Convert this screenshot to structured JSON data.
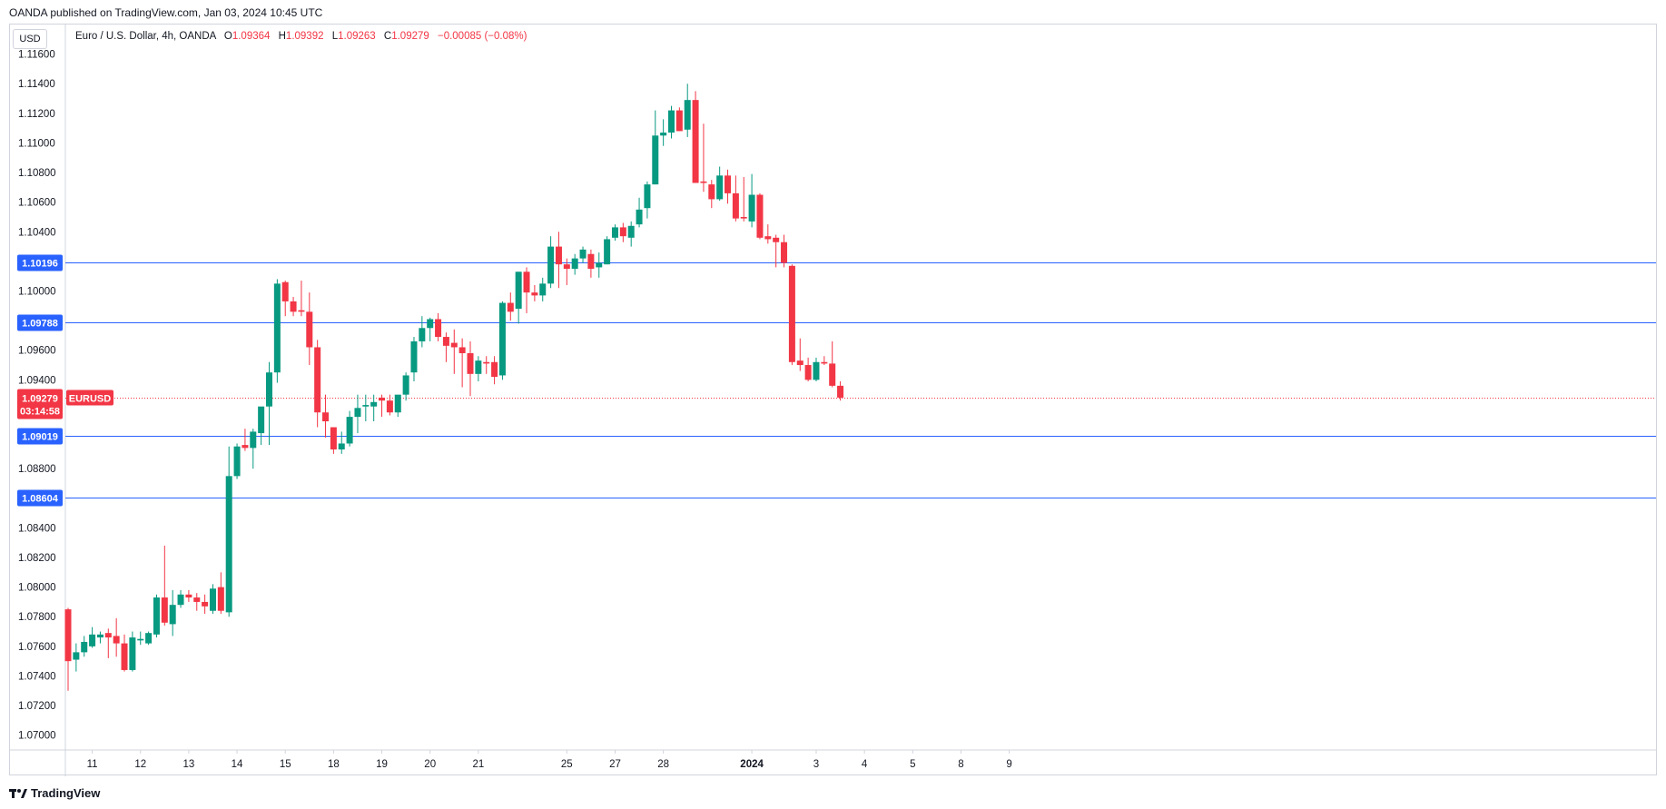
{
  "publisher_line": "OANDA published on TradingView.com, Jan 03, 2024 10:45 UTC",
  "currency_button": "USD",
  "legend": {
    "symbol": "Euro / U.S. Dollar, 4h, OANDA",
    "o_label": "O",
    "o_value": "1.09364",
    "h_label": "H",
    "h_value": "1.09392",
    "l_label": "L",
    "l_value": "1.09263",
    "c_label": "C",
    "c_value": "1.09279",
    "change": "−0.00085 (−0.08%)"
  },
  "footer_brand": "TradingView",
  "colors": {
    "up": "#089981",
    "down": "#f23645",
    "level": "#2962ff",
    "grid": "#d1d4dc"
  },
  "chart_data": {
    "type": "candlestick",
    "title": "Euro / U.S. Dollar, 4h, OANDA",
    "ylim": [
      1.069,
      1.118
    ],
    "y_ticks": [
      "1.11600",
      "1.11400",
      "1.11200",
      "1.11000",
      "1.10800",
      "1.10600",
      "1.10400",
      "1.10200",
      "1.10000",
      "1.09800",
      "1.09600",
      "1.09400",
      "1.09200",
      "1.09000",
      "1.08800",
      "1.08600",
      "1.08400",
      "1.08200",
      "1.08000",
      "1.07800",
      "1.07600",
      "1.07400",
      "1.07200",
      "1.07000"
    ],
    "x_ticks": [
      {
        "label": "11",
        "bar": 3
      },
      {
        "label": "12",
        "bar": 9
      },
      {
        "label": "13",
        "bar": 15
      },
      {
        "label": "14",
        "bar": 21
      },
      {
        "label": "15",
        "bar": 27
      },
      {
        "label": "18",
        "bar": 33
      },
      {
        "label": "19",
        "bar": 39
      },
      {
        "label": "20",
        "bar": 45
      },
      {
        "label": "21",
        "bar": 51
      },
      {
        "label": "25",
        "bar": 62
      },
      {
        "label": "27",
        "bar": 68
      },
      {
        "label": "28",
        "bar": 74
      },
      {
        "label": "2024",
        "bar": 85
      },
      {
        "label": "3",
        "bar": 93
      },
      {
        "label": "4",
        "bar": 99
      },
      {
        "label": "5",
        "bar": 105
      },
      {
        "label": "8",
        "bar": 111
      },
      {
        "label": "9",
        "bar": 117
      }
    ],
    "candles": [
      [
        1.0785,
        1.0786,
        1.073,
        1.075
      ],
      [
        1.0751,
        1.0762,
        1.0743,
        1.0756
      ],
      [
        1.0756,
        1.0767,
        1.0753,
        1.0763
      ],
      [
        1.076,
        1.0773,
        1.0759,
        1.0768
      ],
      [
        1.0766,
        1.077,
        1.0762,
        1.0768
      ],
      [
        1.0769,
        1.0772,
        1.0752,
        1.0766
      ],
      [
        1.0767,
        1.0779,
        1.0753,
        1.0762
      ],
      [
        1.0762,
        1.0768,
        1.0743,
        1.0744
      ],
      [
        1.0744,
        1.077,
        1.0743,
        1.0766
      ],
      [
        1.0764,
        1.077,
        1.0761,
        1.0765
      ],
      [
        1.0762,
        1.077,
        1.0761,
        1.0769
      ],
      [
        1.0768,
        1.0795,
        1.0766,
        1.0793
      ],
      [
        1.0793,
        1.0828,
        1.0774,
        1.0776
      ],
      [
        1.0775,
        1.0798,
        1.0767,
        1.0788
      ],
      [
        1.0788,
        1.0798,
        1.0786,
        1.0795
      ],
      [
        1.0795,
        1.0798,
        1.079,
        1.0793
      ],
      [
        1.0793,
        1.0796,
        1.0784,
        1.079
      ],
      [
        1.079,
        1.0795,
        1.0782,
        1.0787
      ],
      [
        1.0784,
        1.0802,
        1.0782,
        1.0799
      ],
      [
        1.08,
        1.081,
        1.0782,
        1.0784
      ],
      [
        1.0783,
        1.0895,
        1.078,
        1.0875
      ],
      [
        1.0875,
        1.0897,
        1.0873,
        1.0895
      ],
      [
        1.0896,
        1.0907,
        1.0892,
        1.0894
      ],
      [
        1.0894,
        1.0907,
        1.088,
        1.0905
      ],
      [
        1.0904,
        1.092,
        1.0896,
        1.0922
      ],
      [
        1.0922,
        1.0952,
        1.0896,
        1.0945
      ],
      [
        1.0945,
        1.1008,
        1.0938,
        1.1005
      ],
      [
        1.1006,
        1.1007,
        1.0983,
        1.0993
      ],
      [
        1.0993,
        1.0996,
        1.0983,
        1.0986
      ],
      [
        1.0987,
        1.1007,
        1.0983,
        1.0986
      ],
      [
        1.0986,
        1.0999,
        1.095,
        1.0962
      ],
      [
        1.0962,
        1.0967,
        1.0908,
        1.0918
      ],
      [
        1.0918,
        1.093,
        1.0901,
        1.0912
      ],
      [
        1.0908,
        1.0908,
        1.089,
        1.0893
      ],
      [
        1.0893,
        1.0905,
        1.089,
        1.0897
      ],
      [
        1.0897,
        1.0919,
        1.0895,
        1.0915
      ],
      [
        1.0915,
        1.093,
        1.0904,
        1.0921
      ],
      [
        1.0922,
        1.093,
        1.0912,
        1.0923
      ],
      [
        1.0922,
        1.093,
        1.0912,
        1.0925
      ],
      [
        1.0928,
        1.093,
        1.0915,
        1.0926
      ],
      [
        1.0926,
        1.093,
        1.0916,
        1.0918
      ],
      [
        1.0918,
        1.0928,
        1.0915,
        1.093
      ],
      [
        1.093,
        1.0945,
        1.0926,
        1.0943
      ],
      [
        1.0945,
        1.0969,
        1.0939,
        1.0966
      ],
      [
        1.0966,
        1.0983,
        1.0962,
        1.0975
      ],
      [
        1.0975,
        1.0982,
        1.0966,
        1.0981
      ],
      [
        1.0981,
        1.0985,
        1.0966,
        1.0969
      ],
      [
        1.0969,
        1.0972,
        1.0952,
        1.0963
      ],
      [
        1.0965,
        1.0974,
        1.0944,
        1.0962
      ],
      [
        1.0962,
        1.0968,
        1.0935,
        1.0958
      ],
      [
        1.0958,
        1.0966,
        1.0929,
        1.0944
      ],
      [
        1.0944,
        1.0956,
        1.0939,
        1.0953
      ],
      [
        1.0952,
        1.0956,
        1.0944,
        1.0951
      ],
      [
        1.0952,
        1.0956,
        1.0937,
        1.0942
      ],
      [
        1.0943,
        1.0993,
        1.094,
        1.0992
      ],
      [
        1.0992,
        1.0999,
        1.098,
        1.0986
      ],
      [
        1.0988,
        1.1013,
        1.0978,
        1.1013
      ],
      [
        1.1013,
        1.1016,
        1.0985,
        1.0999
      ],
      [
        1.0999,
        1.1004,
        1.0993,
        1.0997
      ],
      [
        1.0997,
        1.1009,
        1.0993,
        1.1005
      ],
      [
        1.1005,
        1.1037,
        1.1002,
        1.103
      ],
      [
        1.103,
        1.104,
        1.1002,
        1.1018
      ],
      [
        1.1018,
        1.1022,
        1.1004,
        1.1015
      ],
      [
        1.1015,
        1.1025,
        1.1011,
        1.1022
      ],
      [
        1.1022,
        1.103,
        1.1019,
        1.1028
      ],
      [
        1.1025,
        1.1028,
        1.1009,
        1.1015
      ],
      [
        1.1016,
        1.1026,
        1.1009,
        1.1019
      ],
      [
        1.1018,
        1.1037,
        1.1018,
        1.1035
      ],
      [
        1.1036,
        1.1045,
        1.1034,
        1.1043
      ],
      [
        1.1043,
        1.1046,
        1.1033,
        1.1037
      ],
      [
        1.1036,
        1.1047,
        1.103,
        1.1044
      ],
      [
        1.1045,
        1.1063,
        1.1043,
        1.1055
      ],
      [
        1.1056,
        1.1074,
        1.1049,
        1.1072
      ],
      [
        1.1072,
        1.1122,
        1.1072,
        1.1105
      ],
      [
        1.1105,
        1.1116,
        1.1098,
        1.1107
      ],
      [
        1.1107,
        1.1125,
        1.1103,
        1.1122
      ],
      [
        1.1122,
        1.1124,
        1.1108,
        1.1108
      ],
      [
        1.1109,
        1.114,
        1.1104,
        1.1129
      ],
      [
        1.1129,
        1.1135,
        1.1073,
        1.1073
      ],
      [
        1.1074,
        1.1113,
        1.1067,
        1.1073
      ],
      [
        1.1072,
        1.1075,
        1.1056,
        1.1062
      ],
      [
        1.1062,
        1.1084,
        1.1061,
        1.1078
      ],
      [
        1.1078,
        1.1082,
        1.1059,
        1.1066
      ],
      [
        1.1066,
        1.1078,
        1.1047,
        1.1049
      ],
      [
        1.105,
        1.1077,
        1.1047,
        1.1049
      ],
      [
        1.1047,
        1.1079,
        1.1043,
        1.1065
      ],
      [
        1.1065,
        1.1066,
        1.1035,
        1.1036
      ],
      [
        1.1037,
        1.1045,
        1.1032,
        1.1035
      ],
      [
        1.1036,
        1.1038,
        1.1016,
        1.1033
      ],
      [
        1.1033,
        1.1038,
        1.1016,
        1.1019
      ],
      [
        1.1017,
        1.1018,
        1.095,
        1.0952
      ],
      [
        1.0953,
        1.0968,
        1.0946,
        1.095
      ],
      [
        1.095,
        1.0955,
        1.0939,
        1.094
      ],
      [
        1.094,
        1.0955,
        1.0939,
        1.0952
      ],
      [
        1.0952,
        1.0956,
        1.095,
        1.0951
      ],
      [
        1.0951,
        1.0966,
        1.0935,
        1.0936
      ],
      [
        1.0936,
        1.0939,
        1.0926,
        1.0928
      ]
    ],
    "levels": [
      "1.10196",
      "1.09788",
      "1.09019",
      "1.08604"
    ],
    "current_price": "1.09279",
    "current_symbol": "EURUSD",
    "countdown": "03:14:58"
  }
}
